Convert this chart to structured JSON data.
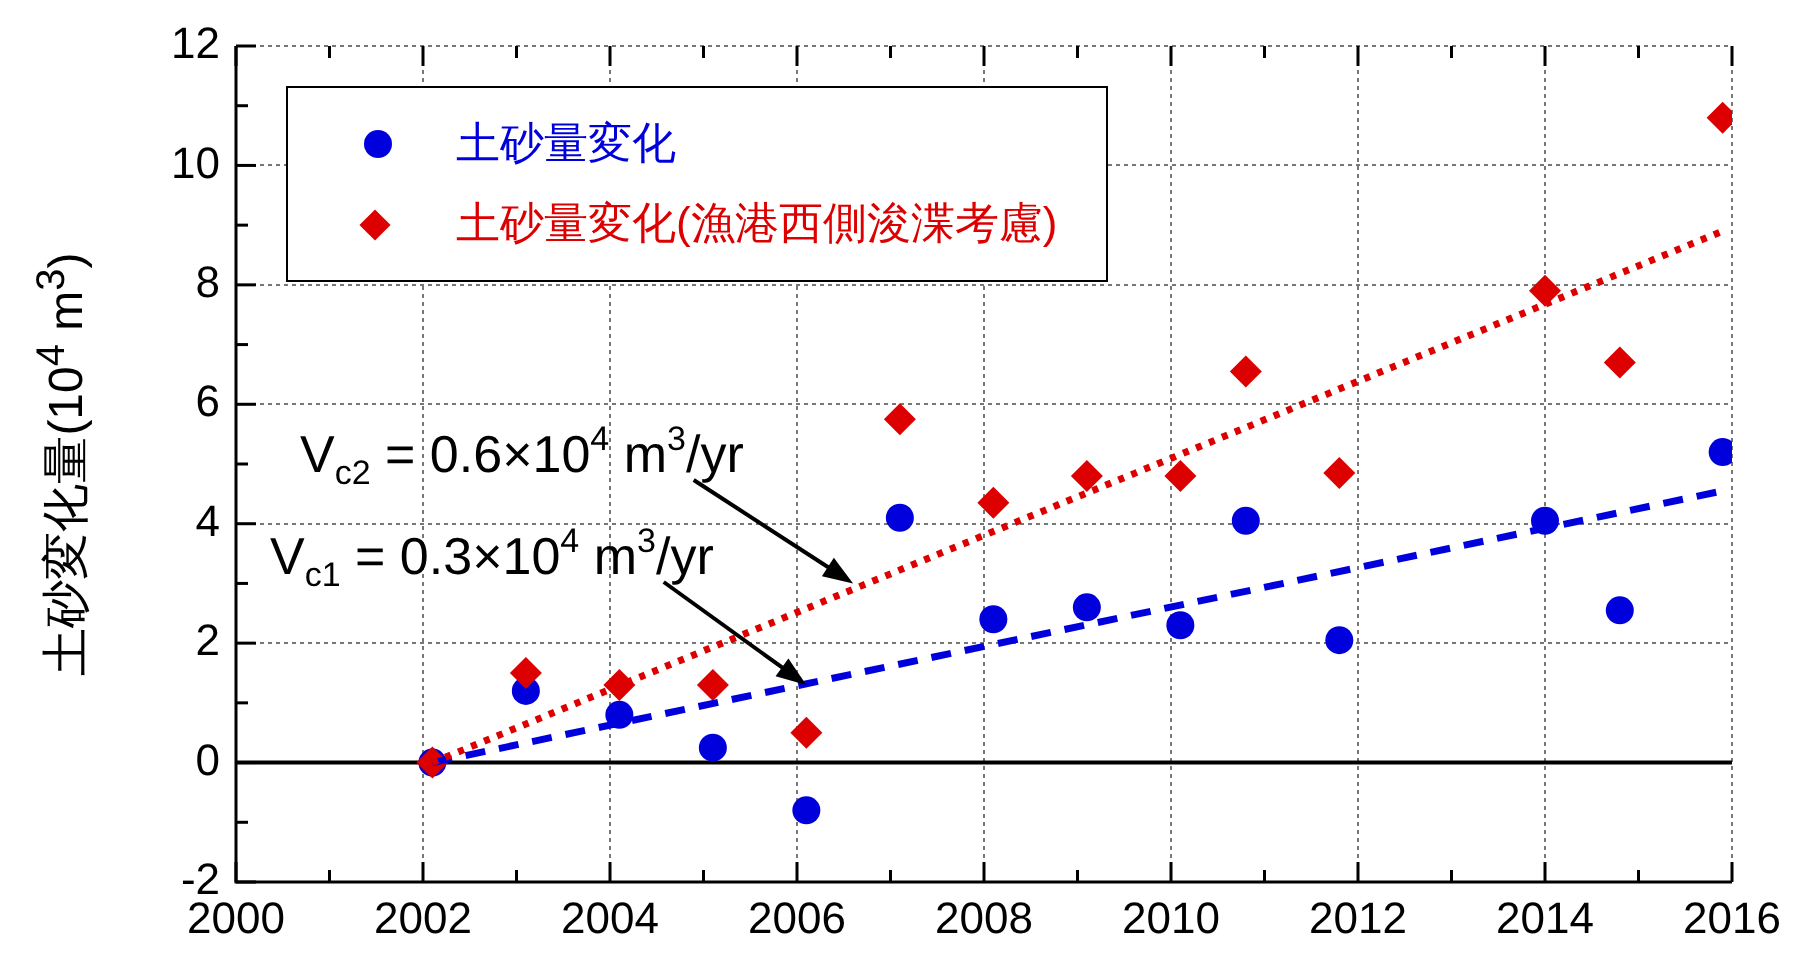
{
  "chart_data": {
    "type": "scatter",
    "ylabel": "土砂変化量(10$^{4}$ m$^{3}$)",
    "xlim": [
      2000,
      2016
    ],
    "xticks": [
      2000,
      {
        "value": 2001,
        "label": null
      },
      2002,
      {
        "value": 2003,
        "label": null
      },
      2004,
      {
        "value": 2005,
        "label": null
      },
      2006,
      {
        "value": 2007,
        "label": null
      },
      2008,
      {
        "value": 2009,
        "label": null
      },
      2010,
      {
        "value": 2011,
        "label": null
      },
      2012,
      {
        "value": 2013,
        "label": null
      },
      2014,
      {
        "value": 2015,
        "label": null
      },
      2016
    ],
    "ylim": [
      -2,
      12
    ],
    "yticks": [
      -2,
      {
        "value": -1,
        "label": null
      },
      0,
      {
        "value": 1,
        "label": null
      },
      2,
      {
        "value": 3,
        "label": null
      },
      4,
      {
        "value": 5,
        "label": null
      },
      6,
      {
        "value": 7,
        "label": null
      },
      8,
      {
        "value": 9,
        "label": null
      },
      10,
      {
        "value": 11,
        "label": null
      },
      12
    ],
    "grid": true,
    "legend": "top left",
    "series": [
      {
        "name": "土砂量変化",
        "color": "#0000dd",
        "marker": "circle",
        "x": [
          2002.1,
          2003.1,
          2004.1,
          2005.1,
          2006.1,
          2007.1,
          2008.1,
          2009.1,
          2010.1,
          2010.8,
          2011.8,
          2014,
          2014.8,
          2015.9
        ],
        "values": [
          0,
          1.2,
          0.8,
          0.25,
          -0.8,
          4.1,
          2.4,
          2.6,
          2.3,
          4.05,
          2.05,
          4.05,
          2.55,
          5.2
        ]
      },
      {
        "name": "土砂量変化(漁港西側浚渫考慮)",
        "color": "#dd0000",
        "marker": "diamond",
        "x": [
          2002.1,
          2003.1,
          2004.1,
          2005.1,
          2006.1,
          2007.1,
          2008.1,
          2009.1,
          2010.1,
          2010.8,
          2011.8,
          2014,
          2014.8,
          2015.9
        ],
        "values": [
          0,
          1.5,
          1.3,
          1.3,
          0.5,
          5.75,
          4.35,
          4.8,
          4.8,
          6.55,
          4.85,
          7.9,
          6.7,
          10.8
        ]
      },
      {
        "type": "line",
        "color": "#0000dd",
        "line_style": "dashed",
        "x": [
          2002.1,
          2015.9
        ],
        "values": [
          0,
          4.55
        ]
      },
      {
        "type": "line",
        "color": "#dd0000",
        "line_style": "dotted",
        "x": [
          2002.1,
          2015.9
        ],
        "values": [
          0,
          8.9
        ]
      }
    ],
    "ref_lines": [
      {
        "axis": "y",
        "value": 0,
        "color": "#000000"
      }
    ],
    "annotations": [
      {
        "text": "V$_{c2}$ = 0.6×10$^{4}$ m$^{3}$/yr",
        "x": 2006.6,
        "y": 3.0
      },
      {
        "text": "V$_{c1}$ = 0.3×10$^{4}$ m$^{3}$/yr",
        "x": 2006.1,
        "y": 1.3
      }
    ]
  }
}
